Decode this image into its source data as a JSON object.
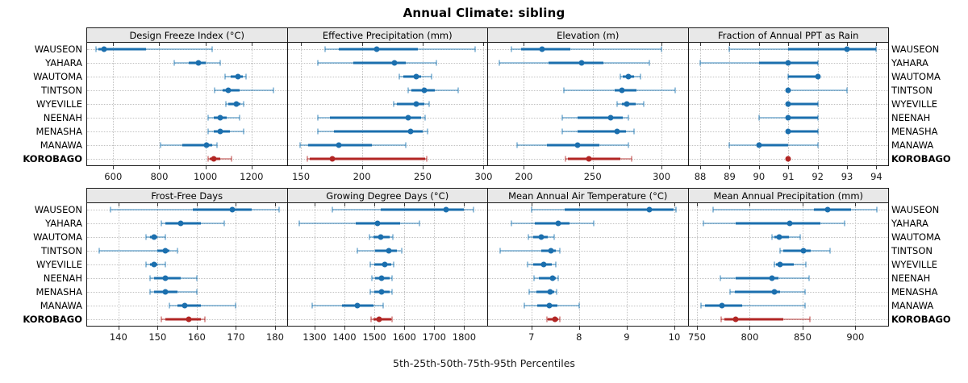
{
  "title": "Annual Climate: sibling",
  "caption": "5th-25th-50th-75th-95th Percentiles",
  "sites": [
    "WAUSEON",
    "YAHARA",
    "WAUTOMA",
    "TINTSON",
    "WYEVILLE",
    "NEENAH",
    "MENASHA",
    "MANAWA",
    "KOROBAGO"
  ],
  "highlight_site": "KOROBAGO",
  "percentile_labels": [
    "5th",
    "25th",
    "50th",
    "75th",
    "95th"
  ],
  "colors": {
    "series": "#1b6fae",
    "series_light": "rgba(31,119,180,0.45)",
    "highlight": "#b22624",
    "highlight_light": "rgba(178,38,36,0.45)",
    "strip_bg": "#e8e8e8",
    "grid": "#c2c2c2",
    "border": "#1a1a1a"
  },
  "chart_data": [
    {
      "type": "dotplot-percentile",
      "title": "Design Freeze Index (°C)",
      "ticks": [
        600,
        800,
        1000,
        1200
      ],
      "domain": [
        487,
        1353
      ],
      "series": [
        {
          "name": "WAUSEON",
          "values": [
            525,
            537,
            562,
            742,
            1029
          ]
        },
        {
          "name": "YAHARA",
          "values": [
            865,
            929,
            970,
            1000,
            1066
          ]
        },
        {
          "name": "WAUTOMA",
          "values": [
            1085,
            1110,
            1140,
            1163,
            1175
          ]
        },
        {
          "name": "TINTSON",
          "values": [
            1039,
            1076,
            1100,
            1147,
            1294
          ]
        },
        {
          "name": "WYEVILLE",
          "values": [
            1088,
            1100,
            1135,
            1153,
            1167
          ]
        },
        {
          "name": "NEENAH",
          "values": [
            1012,
            1035,
            1065,
            1094,
            1149
          ]
        },
        {
          "name": "MENASHA",
          "values": [
            1012,
            1035,
            1065,
            1106,
            1167
          ]
        },
        {
          "name": "MANAWA",
          "values": [
            804,
            900,
            1006,
            1029,
            1051
          ]
        },
        {
          "name": "KOROBAGO",
          "values": [
            1012,
            1018,
            1035,
            1065,
            1115
          ]
        }
      ]
    },
    {
      "type": "dotplot-percentile",
      "title": "Effective Precipitation (mm)",
      "ticks": [
        150,
        200,
        250,
        300
      ],
      "domain": [
        139,
        303
      ],
      "series": [
        {
          "name": "WAUSEON",
          "values": [
            170,
            181,
            212,
            246,
            293
          ]
        },
        {
          "name": "YAHARA",
          "values": [
            164,
            193,
            227,
            236,
            261
          ]
        },
        {
          "name": "WAUTOMA",
          "values": [
            231,
            234,
            245,
            249,
            257
          ]
        },
        {
          "name": "TINTSON",
          "values": [
            238,
            241,
            251,
            260,
            279
          ]
        },
        {
          "name": "WYEVILLE",
          "values": [
            226,
            229,
            245,
            251,
            255
          ]
        },
        {
          "name": "NEENAH",
          "values": [
            164,
            174,
            238,
            249,
            252
          ]
        },
        {
          "name": "MENASHA",
          "values": [
            164,
            177,
            240,
            250,
            254
          ]
        },
        {
          "name": "MANAWA",
          "values": [
            149,
            156,
            181,
            208,
            236
          ]
        },
        {
          "name": "KOROBAGO",
          "values": [
            155,
            157,
            176,
            252,
            253
          ]
        }
      ]
    },
    {
      "type": "dotplot-percentile",
      "title": "Elevation (m)",
      "ticks": [
        200,
        250,
        300
      ],
      "domain": [
        174,
        319
      ],
      "series": [
        {
          "name": "WAUSEON",
          "values": [
            191,
            198,
            213,
            234,
            300
          ]
        },
        {
          "name": "YAHARA",
          "values": [
            182,
            218,
            242,
            258,
            291
          ]
        },
        {
          "name": "WAUTOMA",
          "values": [
            270,
            272,
            276,
            280,
            285
          ]
        },
        {
          "name": "TINTSON",
          "values": [
            229,
            266,
            271,
            282,
            310
          ]
        },
        {
          "name": "WYEVILLE",
          "values": [
            268,
            271,
            275,
            281,
            287
          ]
        },
        {
          "name": "NEENAH",
          "values": [
            228,
            239,
            263,
            272,
            276
          ]
        },
        {
          "name": "MENASHA",
          "values": [
            228,
            239,
            268,
            274,
            280
          ]
        },
        {
          "name": "MANAWA",
          "values": [
            195,
            217,
            239,
            255,
            276
          ]
        },
        {
          "name": "KOROBAGO",
          "values": [
            230,
            232,
            247,
            270,
            278
          ]
        }
      ]
    },
    {
      "type": "dotplot-percentile",
      "title": "Fraction of Annual PPT as Rain",
      "ticks": [
        88,
        89,
        90,
        91,
        92,
        93,
        94
      ],
      "domain": [
        87.6,
        94.4
      ],
      "series": [
        {
          "name": "WAUSEON",
          "values": [
            89,
            91,
            93,
            94,
            94
          ]
        },
        {
          "name": "YAHARA",
          "values": [
            88,
            90,
            91,
            92,
            92
          ]
        },
        {
          "name": "WAUTOMA",
          "values": [
            91,
            91,
            92,
            92,
            92
          ]
        },
        {
          "name": "TINTSON",
          "values": [
            91,
            91,
            91,
            91,
            93
          ]
        },
        {
          "name": "WYEVILLE",
          "values": [
            91,
            91,
            91,
            92,
            92
          ]
        },
        {
          "name": "NEENAH",
          "values": [
            90,
            91,
            91,
            92,
            92
          ]
        },
        {
          "name": "MENASHA",
          "values": [
            91,
            91,
            91,
            92,
            92
          ]
        },
        {
          "name": "MANAWA",
          "values": [
            89,
            90,
            90,
            91,
            92
          ]
        },
        {
          "name": "KOROBAGO",
          "values": [
            91,
            91,
            91,
            91,
            91
          ]
        }
      ]
    },
    {
      "type": "dotplot-percentile",
      "title": "Frost-Free Days",
      "ticks": [
        140,
        150,
        160,
        170,
        180
      ],
      "domain": [
        132,
        183
      ],
      "series": [
        {
          "name": "WAUSEON",
          "values": [
            138,
            159,
            169,
            174,
            181
          ]
        },
        {
          "name": "YAHARA",
          "values": [
            151,
            152,
            156,
            161,
            167
          ]
        },
        {
          "name": "WAUTOMA",
          "values": [
            147,
            148,
            149,
            150,
            152
          ]
        },
        {
          "name": "TINTSON",
          "values": [
            135,
            150,
            152,
            153,
            155
          ]
        },
        {
          "name": "WYEVILLE",
          "values": [
            147,
            148,
            149,
            150,
            152
          ]
        },
        {
          "name": "NEENAH",
          "values": [
            148,
            149,
            152,
            156,
            160
          ]
        },
        {
          "name": "MENASHA",
          "values": [
            148,
            149,
            152,
            155,
            160
          ]
        },
        {
          "name": "MANAWA",
          "values": [
            153,
            155,
            157,
            161,
            170
          ]
        },
        {
          "name": "KOROBAGO",
          "values": [
            151,
            152,
            158,
            161,
            162
          ]
        }
      ]
    },
    {
      "type": "dotplot-percentile",
      "title": "Growing Degree Days (°C)",
      "ticks": [
        1300,
        1400,
        1500,
        1600,
        1700,
        1800
      ],
      "domain": [
        1210,
        1877
      ],
      "series": [
        {
          "name": "WAUSEON",
          "values": [
            1360,
            1520,
            1740,
            1800,
            1832
          ]
        },
        {
          "name": "YAHARA",
          "values": [
            1250,
            1438,
            1510,
            1587,
            1650
          ]
        },
        {
          "name": "WAUTOMA",
          "values": [
            1483,
            1496,
            1521,
            1552,
            1563
          ]
        },
        {
          "name": "TINTSON",
          "values": [
            1443,
            1503,
            1548,
            1574,
            1590
          ]
        },
        {
          "name": "WYEVILLE",
          "values": [
            1487,
            1501,
            1535,
            1556,
            1565
          ]
        },
        {
          "name": "NEENAH",
          "values": [
            1492,
            1503,
            1525,
            1552,
            1559
          ]
        },
        {
          "name": "MENASHA",
          "values": [
            1487,
            1501,
            1525,
            1552,
            1559
          ]
        },
        {
          "name": "MANAWA",
          "values": [
            1291,
            1391,
            1443,
            1498,
            1530
          ]
        },
        {
          "name": "KOROBAGO",
          "values": [
            1489,
            1496,
            1516,
            1556,
            1559
          ]
        }
      ]
    },
    {
      "type": "dotplot-percentile",
      "title": "Mean Annual Air Temperature (°C)",
      "ticks": [
        7,
        8,
        9,
        10
      ],
      "domain": [
        6.09,
        10.28
      ],
      "series": [
        {
          "name": "WAUSEON",
          "values": [
            7.0,
            7.7,
            9.47,
            9.98,
            10.03
          ]
        },
        {
          "name": "YAHARA",
          "values": [
            6.58,
            7.08,
            7.56,
            7.8,
            8.31
          ]
        },
        {
          "name": "WAUTOMA",
          "values": [
            6.93,
            7.03,
            7.2,
            7.35,
            7.47
          ]
        },
        {
          "name": "TINTSON",
          "values": [
            6.34,
            7.21,
            7.41,
            7.51,
            7.59
          ]
        },
        {
          "name": "WYEVILLE",
          "values": [
            6.92,
            7.03,
            7.25,
            7.42,
            7.51
          ]
        },
        {
          "name": "NEENAH",
          "values": [
            7.06,
            7.16,
            7.44,
            7.52,
            7.57
          ]
        },
        {
          "name": "MENASHA",
          "values": [
            6.95,
            7.11,
            7.4,
            7.48,
            7.53
          ]
        },
        {
          "name": "MANAWA",
          "values": [
            6.85,
            7.13,
            7.37,
            7.55,
            8.0
          ]
        },
        {
          "name": "KOROBAGO",
          "values": [
            7.33,
            7.35,
            7.49,
            7.57,
            7.59
          ]
        }
      ]
    },
    {
      "type": "dotplot-percentile",
      "title": "Mean Annual Precipitation (mm)",
      "ticks": [
        750,
        800,
        850,
        900
      ],
      "domain": [
        742,
        931
      ],
      "series": [
        {
          "name": "WAUSEON",
          "values": [
            765,
            861,
            874,
            896,
            920
          ]
        },
        {
          "name": "YAHARA",
          "values": [
            756,
            787,
            838,
            867,
            890
          ]
        },
        {
          "name": "WAUTOMA",
          "values": [
            821,
            823,
            828,
            837,
            848
          ]
        },
        {
          "name": "TINTSON",
          "values": [
            829,
            832,
            851,
            858,
            876
          ]
        },
        {
          "name": "WYEVILLE",
          "values": [
            823,
            825,
            829,
            842,
            853
          ]
        },
        {
          "name": "NEENAH",
          "values": [
            772,
            787,
            821,
            827,
            856
          ]
        },
        {
          "name": "MENASHA",
          "values": [
            781,
            786,
            823,
            829,
            852
          ]
        },
        {
          "name": "MANAWA",
          "values": [
            754,
            758,
            774,
            793,
            852
          ]
        },
        {
          "name": "KOROBAGO",
          "values": [
            773,
            776,
            787,
            832,
            857
          ]
        }
      ]
    }
  ]
}
